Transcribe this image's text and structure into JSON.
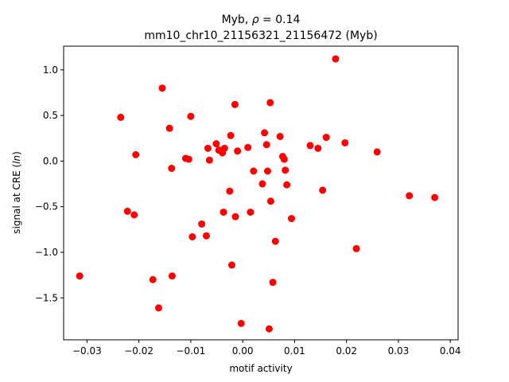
{
  "chart_data": {
    "type": "scatter",
    "title_prefix": "Myb, ",
    "title_rho_symbol": "ρ",
    "title_rho_value": " = 0.14",
    "subtitle": "mm10_chr10_21156321_21156472 (Myb)",
    "xlabel": "motif activity",
    "ylabel_prefix": "signal at CRE (",
    "ylabel_italic": "ln",
    "ylabel_suffix": ")",
    "xlim": [
      -0.0345,
      0.0415
    ],
    "ylim": [
      -1.96,
      1.26
    ],
    "xticks": [
      -0.03,
      -0.02,
      -0.01,
      0.0,
      0.01,
      0.02,
      0.03,
      0.04
    ],
    "xtick_labels": [
      "−0.03",
      "−0.02",
      "−0.01",
      "0.00",
      "0.01",
      "0.02",
      "0.03",
      "0.04"
    ],
    "yticks": [
      -1.5,
      -1.0,
      -0.5,
      0.0,
      0.5,
      1.0
    ],
    "ytick_labels": [
      "−1.5",
      "−1.0",
      "−0.5",
      "0.0",
      "0.5",
      "1.0"
    ],
    "grid": false,
    "marker_color": "#ff0000",
    "points": [
      {
        "x": -0.0314,
        "y": -1.26
      },
      {
        "x": -0.0235,
        "y": 0.48
      },
      {
        "x": -0.0222,
        "y": -0.55
      },
      {
        "x": -0.0209,
        "y": -0.59
      },
      {
        "x": -0.0206,
        "y": 0.07
      },
      {
        "x": -0.0173,
        "y": -1.3
      },
      {
        "x": -0.0162,
        "y": -1.61
      },
      {
        "x": -0.0155,
        "y": 0.8
      },
      {
        "x": -0.0141,
        "y": 0.36
      },
      {
        "x": -0.0137,
        "y": -0.08
      },
      {
        "x": -0.0136,
        "y": -1.26
      },
      {
        "x": -0.011,
        "y": 0.03
      },
      {
        "x": -0.0104,
        "y": 0.02
      },
      {
        "x": -0.01,
        "y": 0.49
      },
      {
        "x": -0.0097,
        "y": -0.83
      },
      {
        "x": -0.0079,
        "y": -0.69
      },
      {
        "x": -0.007,
        "y": -0.82
      },
      {
        "x": -0.0067,
        "y": 0.14
      },
      {
        "x": -0.0064,
        "y": 0.01
      },
      {
        "x": -0.0051,
        "y": 0.19
      },
      {
        "x": -0.0046,
        "y": 0.12
      },
      {
        "x": -0.0039,
        "y": 0.09
      },
      {
        "x": -0.0037,
        "y": -0.56
      },
      {
        "x": -0.0035,
        "y": 0.14
      },
      {
        "x": -0.0025,
        "y": -0.33
      },
      {
        "x": -0.0023,
        "y": 0.28
      },
      {
        "x": -0.0021,
        "y": -1.14
      },
      {
        "x": -0.0015,
        "y": 0.62
      },
      {
        "x": -0.0014,
        "y": -0.61
      },
      {
        "x": -0.001,
        "y": 0.11
      },
      {
        "x": -0.0003,
        "y": -1.78
      },
      {
        "x": 0.001,
        "y": 0.15
      },
      {
        "x": 0.0015,
        "y": -0.56
      },
      {
        "x": 0.0021,
        "y": -0.11
      },
      {
        "x": 0.0038,
        "y": -0.25
      },
      {
        "x": 0.0042,
        "y": 0.31
      },
      {
        "x": 0.0046,
        "y": 0.18
      },
      {
        "x": 0.0048,
        "y": -0.11
      },
      {
        "x": 0.0051,
        "y": -1.84
      },
      {
        "x": 0.0053,
        "y": 0.64
      },
      {
        "x": 0.0054,
        "y": -0.44
      },
      {
        "x": 0.0058,
        "y": -1.33
      },
      {
        "x": 0.0063,
        "y": -0.88
      },
      {
        "x": 0.0072,
        "y": 0.27
      },
      {
        "x": 0.0077,
        "y": 0.05
      },
      {
        "x": 0.008,
        "y": 0.02
      },
      {
        "x": 0.0082,
        "y": -0.1
      },
      {
        "x": 0.0085,
        "y": -0.26
      },
      {
        "x": 0.0094,
        "y": -0.63
      },
      {
        "x": 0.013,
        "y": 0.17
      },
      {
        "x": 0.0145,
        "y": 0.14
      },
      {
        "x": 0.0154,
        "y": -0.32
      },
      {
        "x": 0.0161,
        "y": 0.26
      },
      {
        "x": 0.0179,
        "y": 1.12
      },
      {
        "x": 0.0197,
        "y": 0.2
      },
      {
        "x": 0.0219,
        "y": -0.96
      },
      {
        "x": 0.0259,
        "y": 0.1
      },
      {
        "x": 0.0321,
        "y": -0.38
      },
      {
        "x": 0.037,
        "y": -0.4
      }
    ]
  }
}
